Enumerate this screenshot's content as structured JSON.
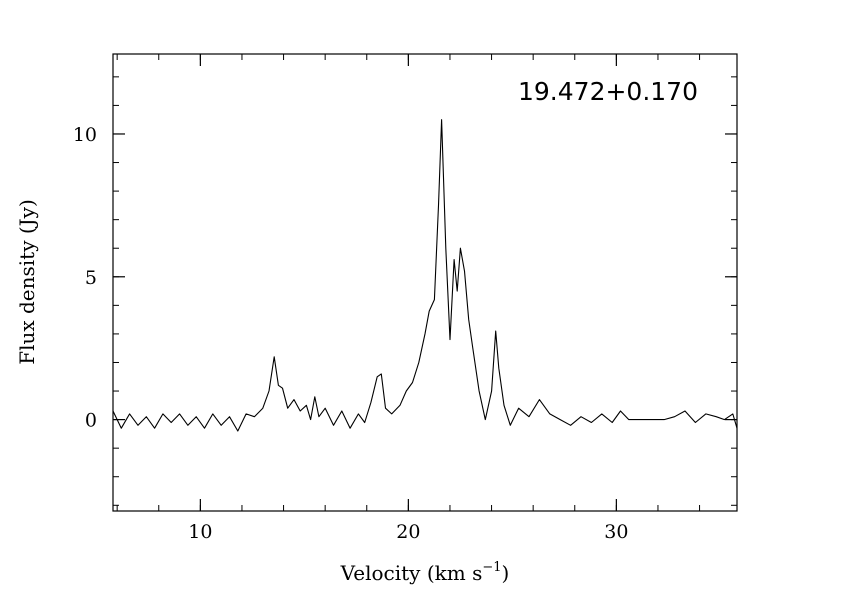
{
  "chart_data": {
    "type": "line",
    "title": "",
    "annotation": "19.472+0.170",
    "xlabel": "Velocity (km s",
    "xlabel_sup": "−1",
    "xlabel_close": ")",
    "ylabel": "Flux density (Jy)",
    "xlim": [
      5.8,
      35.8
    ],
    "ylim": [
      -3.2,
      12.8
    ],
    "x_ticks": [
      10,
      20,
      30
    ],
    "x_tick_labels": [
      "10",
      "20",
      "30"
    ],
    "y_ticks": [
      0,
      5,
      10
    ],
    "y_tick_labels": [
      "0",
      "5",
      "10"
    ],
    "grid": false,
    "colors": {
      "line": "#000000",
      "axes": "#000000",
      "background": "#ffffff"
    },
    "series": [
      {
        "x": [
          5.8,
          6.2,
          6.6,
          7.0,
          7.4,
          7.8,
          8.2,
          8.6,
          9.0,
          9.4,
          9.8,
          10.2,
          10.6,
          11.0,
          11.4,
          11.8,
          12.2,
          12.6,
          13.0,
          13.3,
          13.55,
          13.75,
          13.95,
          14.2,
          14.5,
          14.8,
          15.1,
          15.3,
          15.5,
          15.7,
          16.0,
          16.4,
          16.8,
          17.2,
          17.6,
          17.9,
          18.2,
          18.5,
          18.7,
          18.9,
          19.2,
          19.6,
          19.9,
          20.2,
          20.5,
          20.8,
          21.0,
          21.25,
          21.45,
          21.6,
          21.8,
          22.0,
          22.2,
          22.35,
          22.5,
          22.7,
          22.9,
          23.1,
          23.4,
          23.7,
          24.0,
          24.2,
          24.35,
          24.6,
          24.9,
          25.3,
          25.8,
          26.3,
          26.8,
          27.3,
          27.8,
          28.3,
          28.8,
          29.3,
          29.8,
          30.2,
          30.6,
          31.2,
          31.8,
          32.3,
          32.8,
          33.3,
          33.8,
          34.3,
          34.8,
          35.2,
          35.6,
          35.8
        ],
        "y": [
          0.3,
          -0.3,
          0.2,
          -0.2,
          0.1,
          -0.3,
          0.2,
          -0.1,
          0.2,
          -0.2,
          0.1,
          -0.3,
          0.2,
          -0.2,
          0.1,
          -0.4,
          0.2,
          0.1,
          0.4,
          1.0,
          2.2,
          1.2,
          1.1,
          0.4,
          0.7,
          0.3,
          0.5,
          0.0,
          0.8,
          0.1,
          0.4,
          -0.2,
          0.3,
          -0.3,
          0.2,
          -0.1,
          0.6,
          1.5,
          1.6,
          0.4,
          0.2,
          0.5,
          1.0,
          1.3,
          2.0,
          3.0,
          3.8,
          4.2,
          7.5,
          10.5,
          6.0,
          2.8,
          5.6,
          4.5,
          6.0,
          5.2,
          3.5,
          2.5,
          1.0,
          0.0,
          1.0,
          3.1,
          1.8,
          0.5,
          -0.2,
          0.4,
          0.1,
          0.7,
          0.2,
          0.0,
          -0.2,
          0.1,
          -0.1,
          0.2,
          -0.1,
          0.3,
          0.0,
          0.0,
          0.0,
          0.0,
          0.1,
          0.3,
          -0.1,
          0.2,
          0.1,
          0.0,
          0.2,
          -0.3
        ]
      }
    ]
  }
}
